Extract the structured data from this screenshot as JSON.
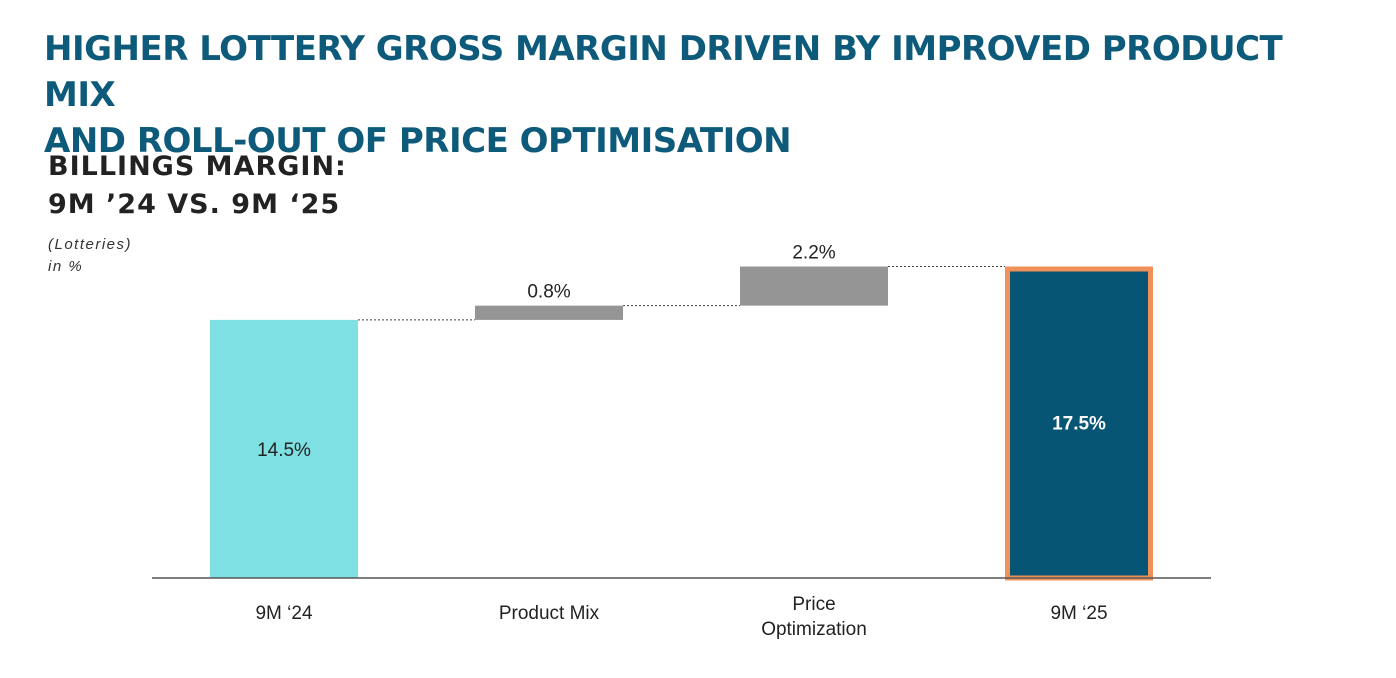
{
  "headline": {
    "line1": "HIGHER LOTTERY GROSS MARGIN DRIVEN BY IMPROVED PRODUCT MIX",
    "line2": "AND ROLL-OUT OF PRICE OPTIMISATION"
  },
  "subheadline": {
    "line1": "BILLINGS MARGIN:",
    "line2": "9M ’24 VS. 9M ‘25"
  },
  "unit_note": {
    "line1": "(Lotteries)",
    "line2": "in %"
  },
  "chart_data": {
    "type": "bar",
    "subtype": "waterfall",
    "title": "BILLINGS MARGIN: 9M ’24 VS. 9M ‘25",
    "xlabel": "",
    "ylabel": "in %",
    "grid": false,
    "categories": [
      "9M ‘24",
      "Product Mix",
      "Price Optimization",
      "9M ‘25"
    ],
    "category_lines": [
      [
        "9M ‘24"
      ],
      [
        "Product Mix"
      ],
      [
        "Price",
        "Optimization"
      ],
      [
        "9M ‘25"
      ]
    ],
    "kinds": [
      "total",
      "delta",
      "delta",
      "total"
    ],
    "values": [
      14.5,
      0.8,
      2.2,
      17.5
    ],
    "labels": [
      "14.5%",
      "0.8%",
      "2.2%",
      "17.5%"
    ],
    "ylim": [
      0,
      20
    ],
    "colors": {
      "start_total": "#7ee0e2",
      "delta": "#959595",
      "end_total": "#065575",
      "end_total_outline": "#f0915a",
      "baseline": "#555555",
      "connector": "#444444"
    }
  }
}
